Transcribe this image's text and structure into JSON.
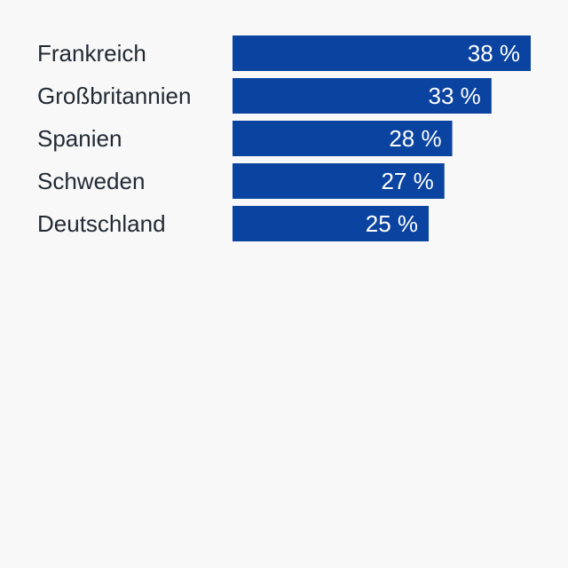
{
  "chart_data": {
    "type": "bar",
    "orientation": "horizontal",
    "title": "",
    "xlabel": "",
    "ylabel": "",
    "categories": [
      "Frankreich",
      "Großbritannien",
      "Spanien",
      "Schweden",
      "Deutschland"
    ],
    "values": [
      38,
      33,
      28,
      27,
      25
    ],
    "value_suffix": " %",
    "xlim": [
      0,
      38
    ],
    "grid": false,
    "legend": "none"
  },
  "colors": {
    "bar": "#0a43a0",
    "background": "#f8f8f9",
    "category_text": "#222a33",
    "value_text": "#ffffff"
  }
}
